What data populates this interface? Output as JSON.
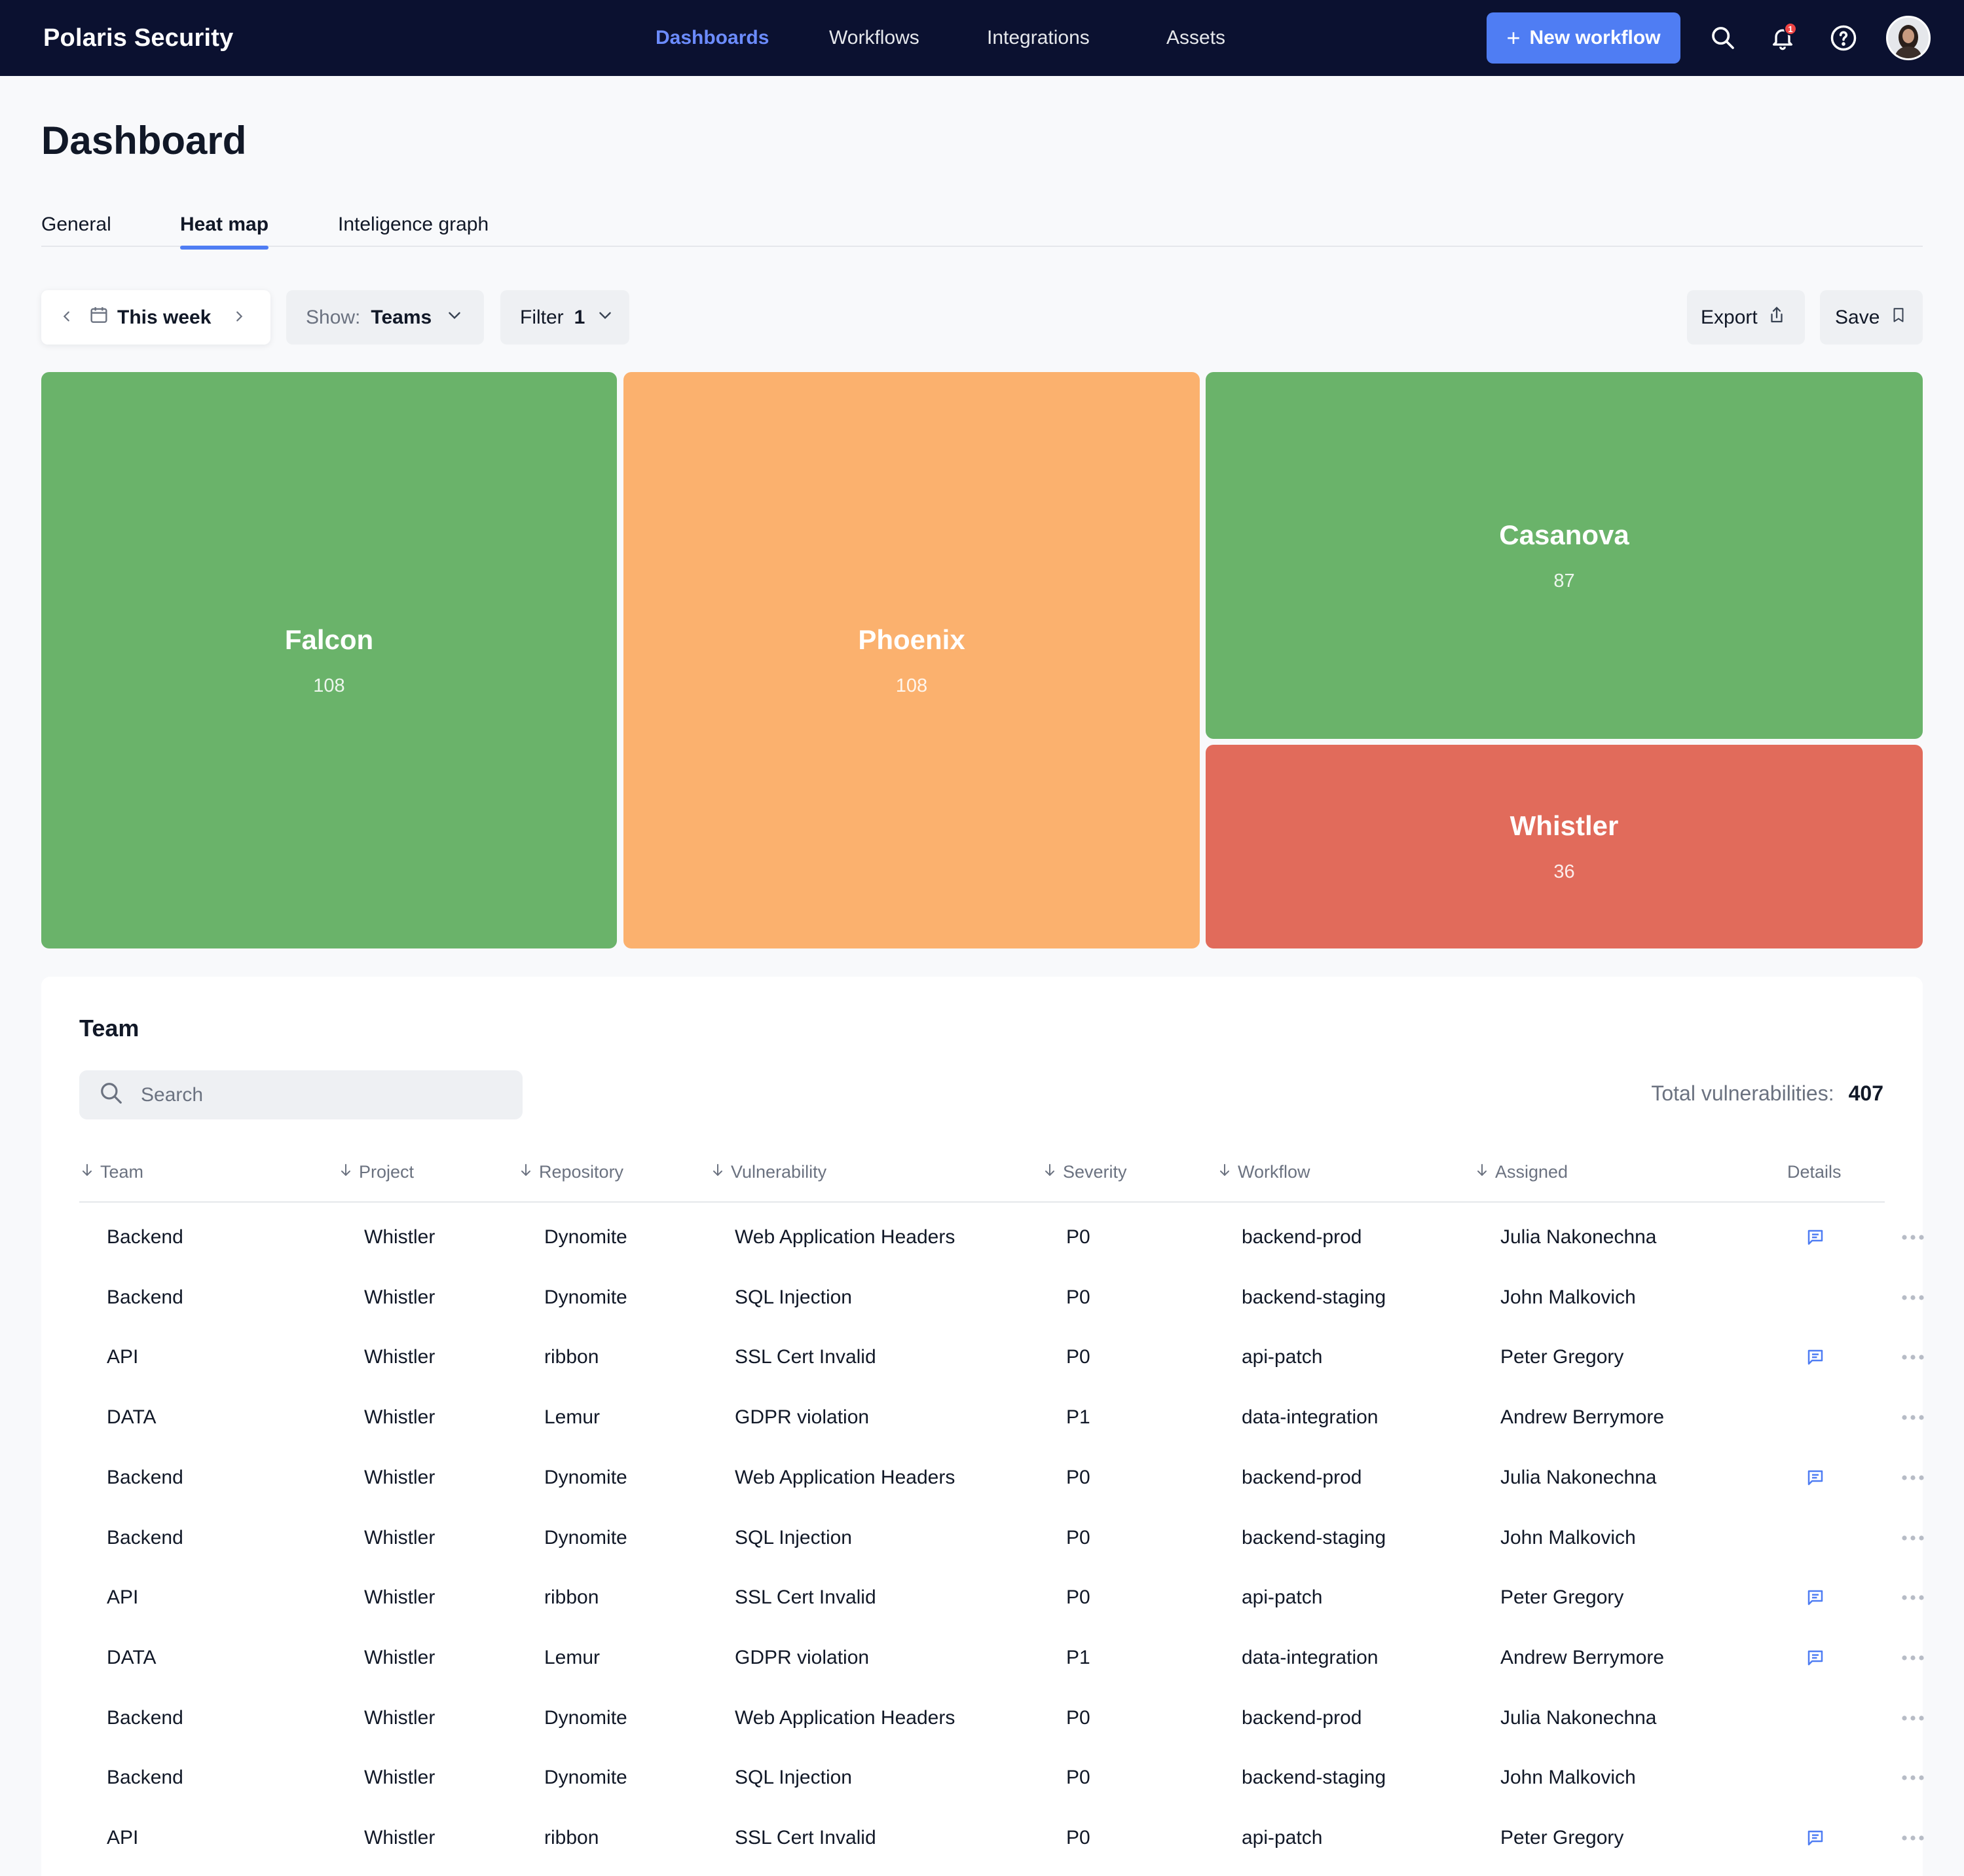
{
  "app": {
    "title": "Polaris Security"
  },
  "nav": {
    "items": [
      {
        "label": "Dashboards",
        "active": true
      },
      {
        "label": "Workflows"
      },
      {
        "label": "Integrations"
      },
      {
        "label": "Assets"
      }
    ],
    "new_workflow_label": "New workflow",
    "notification_count": "1",
    "icons": [
      "search-icon",
      "bell-icon",
      "help-icon",
      "avatar"
    ]
  },
  "page": {
    "title": "Dashboard"
  },
  "tabs": [
    {
      "label": "General"
    },
    {
      "label": "Heat map",
      "active": true
    },
    {
      "label": "Inteligence graph"
    }
  ],
  "controls": {
    "week_label": "This week",
    "show_prefix": "Show:",
    "show_value": "Teams",
    "filter_label": "Filter",
    "filter_count": "1",
    "export_label": "Export",
    "save_label": "Save"
  },
  "heatmap": {
    "tiles": [
      {
        "name": "Falcon",
        "value": "108",
        "color": "#6ab36a"
      },
      {
        "name": "Phoenix",
        "value": "108",
        "color": "#fbb16e"
      },
      {
        "name": "Casanova",
        "value": "87",
        "color": "#6ab36a"
      },
      {
        "name": "Whistler",
        "value": "36",
        "color": "#e16b5b"
      }
    ]
  },
  "table": {
    "title": "Team",
    "search_placeholder": "Search",
    "total_label": "Total vulnerabilities:",
    "total_value": "407",
    "columns": [
      "Team",
      "Project",
      "Repository",
      "Vulnerability",
      "Severity",
      "Workflow",
      "Assigned",
      "Details"
    ],
    "rows": [
      {
        "team": "Backend",
        "project": "Whistler",
        "repository": "Dynomite",
        "vulnerability": "Web Application Headers",
        "severity": "P0",
        "workflow": "backend-prod",
        "assigned": "Julia Nakonechna",
        "has_details": true
      },
      {
        "team": "Backend",
        "project": "Whistler",
        "repository": "Dynomite",
        "vulnerability": "SQL Injection",
        "severity": "P0",
        "workflow": "backend-staging",
        "assigned": "John Malkovich",
        "has_details": false
      },
      {
        "team": "API",
        "project": "Whistler",
        "repository": "ribbon",
        "vulnerability": "SSL Cert Invalid",
        "severity": "P0",
        "workflow": "api-patch",
        "assigned": "Peter Gregory",
        "has_details": true
      },
      {
        "team": "DATA",
        "project": "Whistler",
        "repository": "Lemur",
        "vulnerability": "GDPR violation",
        "severity": "P1",
        "workflow": "data-integration",
        "assigned": "Andrew Berrymore",
        "has_details": false
      },
      {
        "team": "Backend",
        "project": "Whistler",
        "repository": "Dynomite",
        "vulnerability": "Web Application Headers",
        "severity": "P0",
        "workflow": "backend-prod",
        "assigned": "Julia Nakonechna",
        "has_details": true
      },
      {
        "team": "Backend",
        "project": "Whistler",
        "repository": "Dynomite",
        "vulnerability": "SQL Injection",
        "severity": "P0",
        "workflow": "backend-staging",
        "assigned": "John Malkovich",
        "has_details": false
      },
      {
        "team": "API",
        "project": "Whistler",
        "repository": "ribbon",
        "vulnerability": "SSL Cert Invalid",
        "severity": "P0",
        "workflow": "api-patch",
        "assigned": "Peter Gregory",
        "has_details": true
      },
      {
        "team": "DATA",
        "project": "Whistler",
        "repository": "Lemur",
        "vulnerability": "GDPR violation",
        "severity": "P1",
        "workflow": "data-integration",
        "assigned": "Andrew Berrymore",
        "has_details": true
      },
      {
        "team": "Backend",
        "project": "Whistler",
        "repository": "Dynomite",
        "vulnerability": "Web Application Headers",
        "severity": "P0",
        "workflow": "backend-prod",
        "assigned": "Julia Nakonechna",
        "has_details": false
      },
      {
        "team": "Backend",
        "project": "Whistler",
        "repository": "Dynomite",
        "vulnerability": "SQL Injection",
        "severity": "P0",
        "workflow": "backend-staging",
        "assigned": "John Malkovich",
        "has_details": false
      },
      {
        "team": "API",
        "project": "Whistler",
        "repository": "ribbon",
        "vulnerability": "SSL Cert Invalid",
        "severity": "P0",
        "workflow": "api-patch",
        "assigned": "Peter Gregory",
        "has_details": true
      }
    ]
  },
  "colors": {
    "nav_bg": "#0b1130",
    "accent": "#4f7df3",
    "nav_active": "#6c8cff",
    "tile_green": "#6ab36a",
    "tile_orange": "#fbb16e",
    "tile_red": "#e16b5b"
  }
}
